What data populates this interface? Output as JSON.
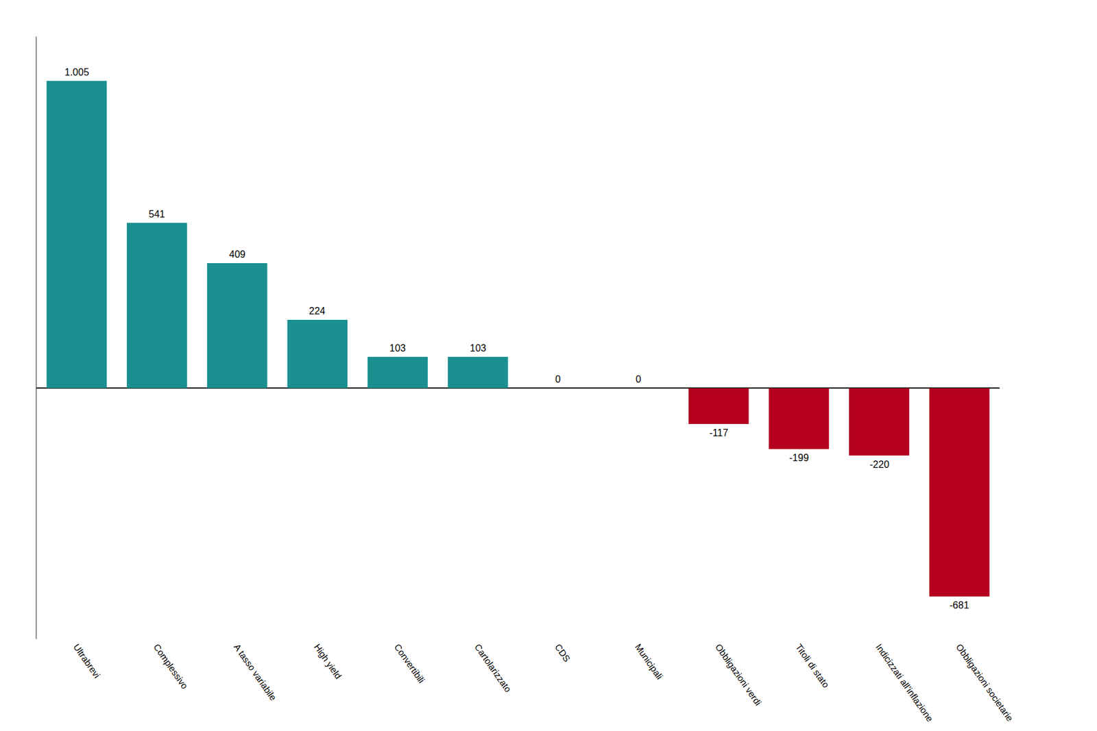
{
  "chart_data": {
    "type": "bar",
    "categories": [
      "Ultrabrevi",
      "Complessivo",
      "A tasso variabile",
      "High yield",
      "Convertibili",
      "Cartolarizzato",
      "CDS",
      "Municipali",
      "Obbligazioni verdi",
      "Titoli di stato",
      "Indicizzati all’inflazione",
      "Obbligazioni societarie"
    ],
    "values": [
      1005,
      541,
      409,
      224,
      103,
      103,
      0,
      0,
      -117,
      -199,
      -220,
      -681
    ],
    "value_labels": [
      "1.005",
      "541",
      "409",
      "224",
      "103",
      "103",
      "0",
      "0",
      "-117",
      "-199",
      "-220",
      "-681"
    ],
    "colors": [
      "#1a9090",
      "#1a9090",
      "#1a9090",
      "#1a9090",
      "#1a9090",
      "#1a9090",
      "#1a9090",
      "#1a9090",
      "#b5001f",
      "#b5001f",
      "#b5001f",
      "#b5001f"
    ],
    "ylim": [
      -820,
      1150
    ],
    "data_labels": true,
    "tick_labels": "x",
    "grid": false
  }
}
